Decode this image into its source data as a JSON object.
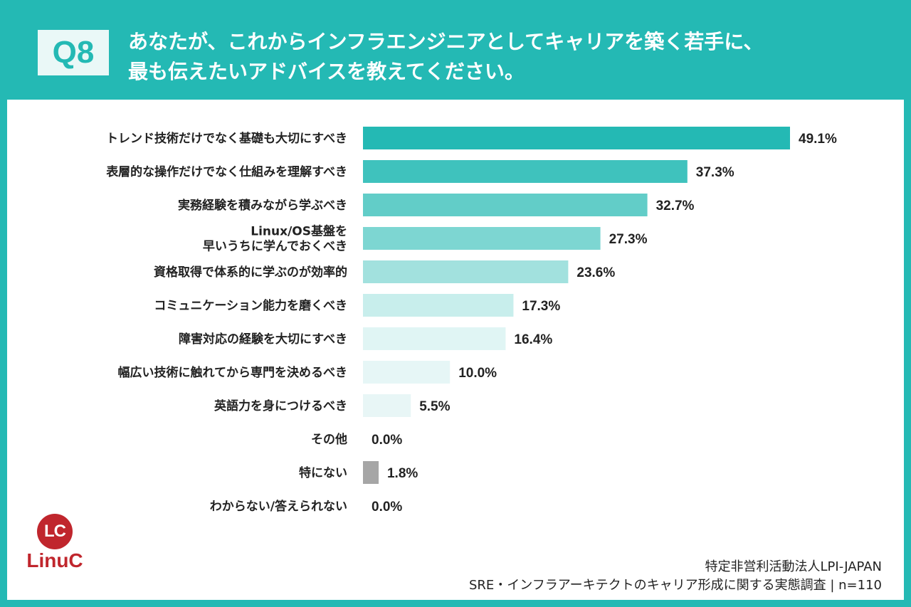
{
  "header": {
    "badge": "Q8",
    "question_line1": "あなたが、これからインフラエンジニアとしてキャリアを築く若手に、",
    "question_line2": "最も伝えたいアドバイスを教えてください。"
  },
  "chart_data": {
    "type": "bar",
    "orientation": "horizontal",
    "categories": [
      "トレンド技術だけでなく基礎も大切にすべき",
      "表層的な操作だけでなく仕組みを理解すべき",
      "実務経験を積みながら学ぶべき",
      "Linux/OS基盤を\n早いうちに学んでおくべき",
      "資格取得で体系的に学ぶのが効率的",
      "コミュニケーション能力を磨くべき",
      "障害対応の経験を大切にすべき",
      "幅広い技術に触れてから専門を決めるべき",
      "英語力を身につけるべき",
      "その他",
      "特にない",
      "わからない/答えられない"
    ],
    "values": [
      49.1,
      37.3,
      32.7,
      27.3,
      23.6,
      17.3,
      16.4,
      10.0,
      5.5,
      0.0,
      1.8,
      0.0
    ],
    "value_labels": [
      "49.1%",
      "37.3%",
      "32.7%",
      "27.3%",
      "23.6%",
      "17.3%",
      "16.4%",
      "10.0%",
      "5.5%",
      "0.0%",
      "1.8%",
      "0.0%"
    ],
    "colors": [
      "#24b9b4",
      "#3fc2bd",
      "#62cdc8",
      "#7dd6d2",
      "#a2e1de",
      "#c8eeec",
      "#e0f5f4",
      "#e6f6f6",
      "#e8f6f6",
      "#e8f6f6",
      "#a6a6a6",
      "#e8f6f6"
    ],
    "xlim": [
      0,
      49.1
    ],
    "grid": false,
    "legend": "none"
  },
  "footer": {
    "logo_mark": "LC",
    "logo_word": "LinuC",
    "source_line1": "特定非営利活動法人LPI-JAPAN",
    "source_line2": "SRE・インフラアーキテクトのキャリア形成に関する実態調査 | n=110"
  }
}
